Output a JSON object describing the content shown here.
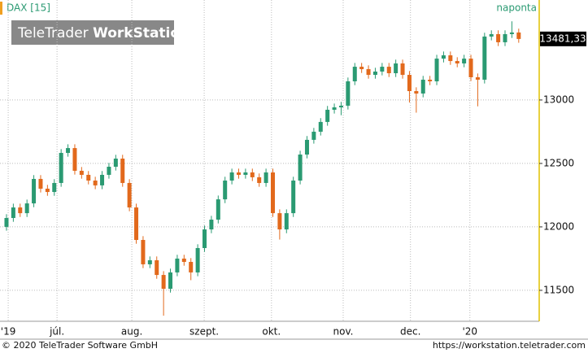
{
  "chart_data": {
    "type": "candlestick",
    "title": "DAX [15]",
    "period": "naponta",
    "watermark": [
      "TeleTrader",
      "WorkStation"
    ],
    "up_color": "#2a9a72",
    "down_color": "#e2691c",
    "grid": true,
    "x": [
      0,
      2,
      4,
      6,
      8,
      10,
      12,
      14,
      16,
      18,
      20,
      22,
      24,
      26,
      28,
      30,
      32,
      34,
      36,
      38,
      40,
      42,
      44,
      46,
      48,
      50,
      52,
      54,
      56,
      58,
      60,
      62,
      64,
      66,
      68,
      70,
      72,
      74,
      76,
      78,
      80,
      82,
      84,
      86,
      88,
      90,
      92,
      94,
      96,
      98,
      100,
      102,
      104,
      106,
      108,
      110,
      112,
      114,
      116,
      118,
      120,
      122,
      124,
      126,
      128,
      130,
      132,
      134,
      136,
      138,
      140,
      142,
      144,
      146,
      148,
      150
    ],
    "open": [
      12000,
      12070,
      12153,
      12108,
      12185,
      12378,
      12301,
      12275,
      12346,
      12583,
      12621,
      12442,
      12410,
      12365,
      12327,
      12410,
      12474,
      12538,
      12346,
      12153,
      11897,
      11705,
      11737,
      11621,
      11512,
      11641,
      11750,
      11724,
      11641,
      11833,
      11980,
      12057,
      12217,
      12365,
      12429,
      12410,
      12429,
      12391,
      12346,
      12429,
      12108,
      11980,
      12108,
      12365,
      12570,
      12686,
      12750,
      12827,
      12923,
      12942,
      12955,
      13147,
      13262,
      13243,
      13198,
      13224,
      13262,
      13211,
      13288,
      13198,
      13070,
      13051,
      13160,
      13147,
      13326,
      13352,
      13307,
      13288,
      13326,
      13179,
      13160,
      13500,
      13519,
      13455,
      13519,
      13532
    ],
    "high": [
      12100,
      12183,
      12183,
      12215,
      12408,
      12408,
      12331,
      12376,
      12613,
      12651,
      12651,
      12472,
      12440,
      12395,
      12440,
      12504,
      12568,
      12568,
      12376,
      12183,
      11927,
      11767,
      11767,
      11651,
      11671,
      11780,
      11780,
      11754,
      11863,
      12010,
      12087,
      12247,
      12395,
      12459,
      12459,
      12459,
      12459,
      12421,
      12459,
      12459,
      12138,
      12138,
      12395,
      12600,
      12716,
      12780,
      12857,
      12953,
      12972,
      12985,
      13177,
      13292,
      13292,
      13273,
      13254,
      13292,
      13292,
      13318,
      13318,
      13228,
      13100,
      13190,
      13190,
      13356,
      13382,
      13382,
      13337,
      13356,
      13356,
      13209,
      13530,
      13549,
      13549,
      13549,
      13620,
      13562
    ],
    "low": [
      11970,
      12040,
      12078,
      12078,
      12155,
      12271,
      12245,
      12245,
      12316,
      12553,
      12412,
      12380,
      12335,
      12297,
      12297,
      12380,
      12444,
      12316,
      12123,
      11867,
      11675,
      11675,
      11591,
      11300,
      11482,
      11611,
      11694,
      11580,
      11611,
      11803,
      11950,
      12027,
      12187,
      12335,
      12380,
      12380,
      12361,
      12316,
      12316,
      12078,
      11900,
      11950,
      12078,
      12335,
      12540,
      12656,
      12720,
      12797,
      12893,
      12880,
      12925,
      13117,
      13213,
      13168,
      13168,
      13194,
      13181,
      13181,
      13168,
      12980,
      12900,
      13021,
      13117,
      13117,
      13296,
      13277,
      13258,
      13258,
      13149,
      12950,
      13130,
      13470,
      13425,
      13425,
      13489,
      13451
    ],
    "close": [
      12070,
      12153,
      12108,
      12185,
      12378,
      12301,
      12275,
      12346,
      12583,
      12621,
      12442,
      12410,
      12365,
      12327,
      12410,
      12474,
      12538,
      12346,
      12153,
      11897,
      11705,
      11737,
      11621,
      11512,
      11641,
      11750,
      11724,
      11641,
      11833,
      11980,
      12057,
      12217,
      12365,
      12429,
      12410,
      12429,
      12391,
      12346,
      12429,
      12108,
      11980,
      12108,
      12365,
      12570,
      12686,
      12750,
      12827,
      12923,
      12942,
      12955,
      13147,
      13262,
      13243,
      13198,
      13224,
      13262,
      13211,
      13288,
      13198,
      13070,
      13051,
      13160,
      13147,
      13326,
      13352,
      13307,
      13288,
      13326,
      13179,
      13160,
      13500,
      13519,
      13455,
      13519,
      13532,
      13481
    ],
    "xlim": [
      -1.9,
      156
    ],
    "xticks": [
      {
        "value": 0.5,
        "label": "'19"
      },
      {
        "value": 14.8,
        "label": "júl."
      },
      {
        "value": 36.7,
        "label": "aug."
      },
      {
        "value": 57.9,
        "label": "szept."
      },
      {
        "value": 77.6,
        "label": "okt."
      },
      {
        "value": 98.6,
        "label": "nov."
      },
      {
        "value": 118.3,
        "label": "dec."
      },
      {
        "value": 135.7,
        "label": "'20"
      }
    ],
    "ylim": [
      11256,
      13788
    ],
    "yticks": [
      11500,
      12000,
      12500,
      13000
    ],
    "last": {
      "value": 13481.33,
      "label": "13481,33"
    }
  },
  "footer": {
    "copyright": "© 2020 TeleTrader Software GmbH",
    "url": "https://workstation.teletrader.com"
  }
}
